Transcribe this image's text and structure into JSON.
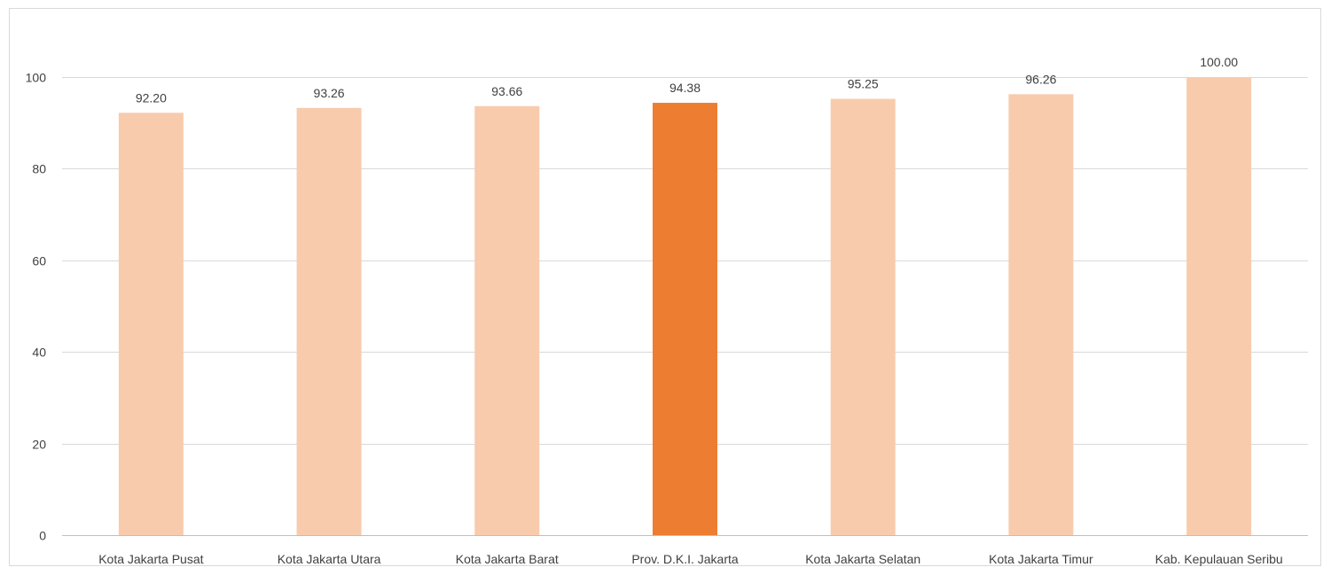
{
  "chart_data": {
    "type": "bar",
    "title": "",
    "xlabel": "",
    "ylabel": "",
    "ylim": [
      0,
      110
    ],
    "yticks": [
      0,
      20,
      40,
      60,
      80,
      100
    ],
    "grid": true,
    "legend": "none",
    "categories": [
      "Kota Jakarta Pusat",
      "Kota Jakarta Utara",
      "Kota Jakarta Barat",
      "Prov. D.K.I. Jakarta",
      "Kota Jakarta Selatan",
      "Kota Jakarta Timur",
      "Kab. Kepulauan Seribu"
    ],
    "values": [
      92.2,
      93.26,
      93.66,
      94.38,
      95.25,
      96.26,
      100.0
    ],
    "data_labels": [
      "92.20",
      "93.26",
      "93.66",
      "94.38",
      "95.25",
      "96.26",
      "100.00"
    ],
    "colors": {
      "default_bar": "#f8cbad",
      "highlight_bar": "#ed7d31",
      "gridline": "#d9d9d9",
      "text": "#404040"
    },
    "highlight_category": "Prov. D.K.I. Jakarta"
  }
}
